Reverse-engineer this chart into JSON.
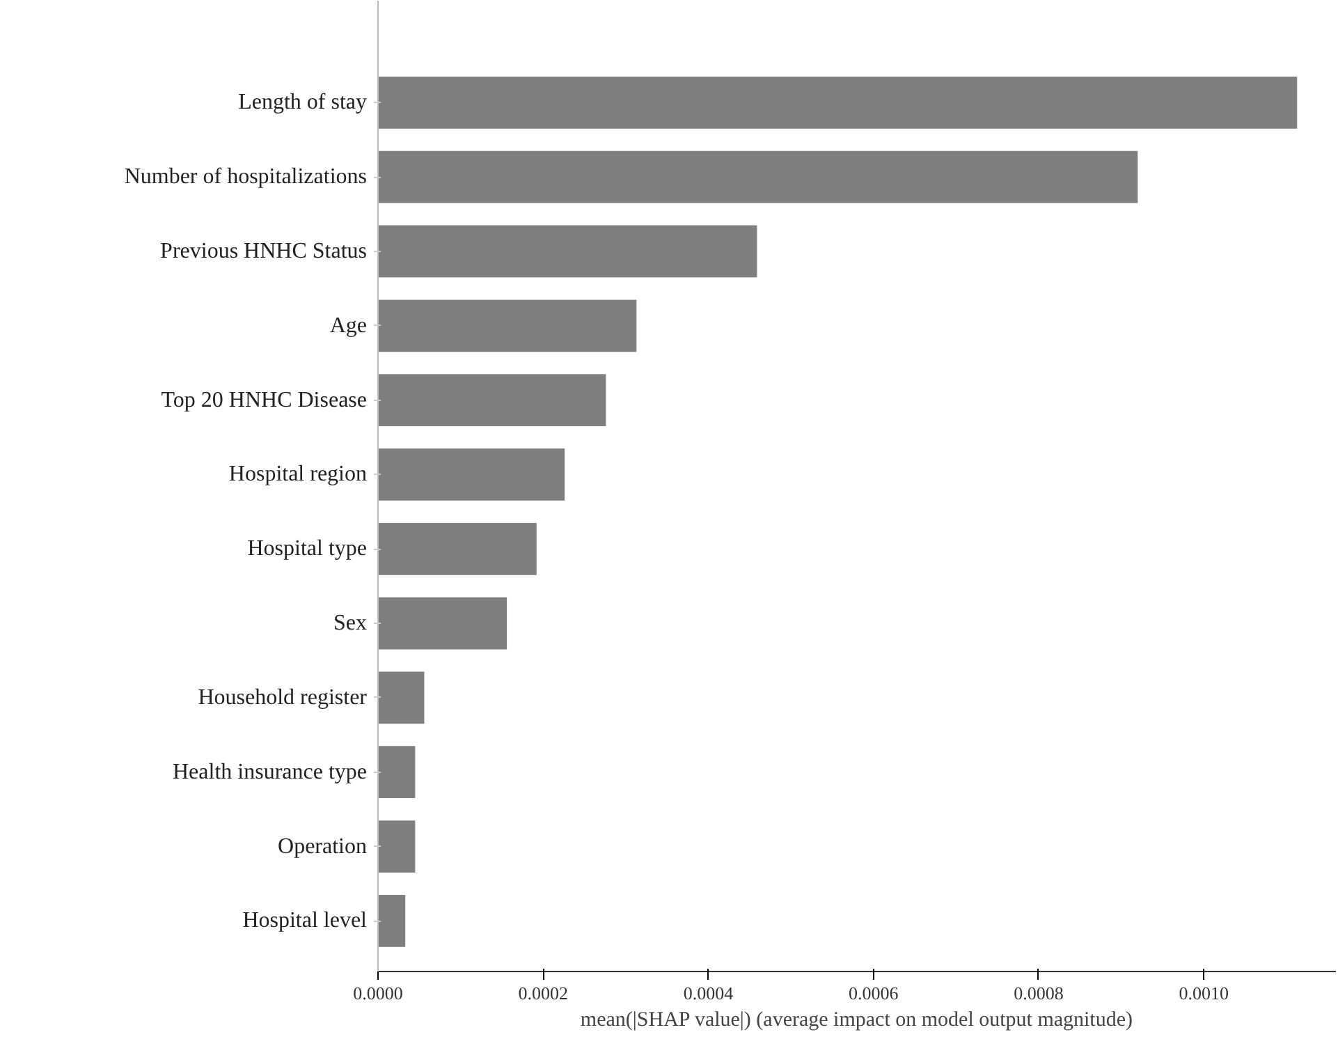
{
  "chart_data": {
    "type": "bar",
    "orientation": "horizontal",
    "xlabel": "mean(|SHAP value|) (average impact on model output magnitude)",
    "categories": [
      "Length of stay",
      "Number of hospitalizations",
      "Previous HNHC Status",
      "Age",
      "Top 20 HNHC Disease",
      "Hospital region",
      "Hospital type",
      "Sex",
      "Household register",
      "Health insurance type",
      "Operation",
      "Hospital level"
    ],
    "values": [
      0.001113,
      0.00092,
      0.000459,
      0.000313,
      0.000276,
      0.000226,
      0.000192,
      0.000156,
      5.6e-05,
      4.5e-05,
      4.5e-05,
      3.3e-05
    ],
    "color": "#7f7f7f",
    "xlim": [
      0,
      0.00116
    ],
    "xticks": [
      {
        "value": 0,
        "label": "0.0000"
      },
      {
        "value": 0.0002,
        "label": "0.0002"
      },
      {
        "value": 0.0004,
        "label": "0.0004"
      },
      {
        "value": 0.0006,
        "label": "0.0006"
      },
      {
        "value": 0.0008,
        "label": "0.0008"
      },
      {
        "value": 0.001,
        "label": "0.0010"
      }
    ],
    "grid": false
  }
}
